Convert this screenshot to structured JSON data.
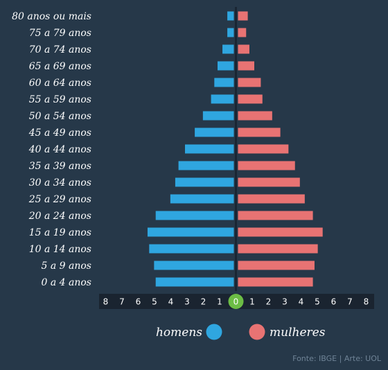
{
  "chart_data": {
    "type": "bar",
    "orientation": "horizontal",
    "categories": [
      "80 anos ou mais",
      "75 a 79 anos",
      "70 a 74 anos",
      "65 a 69 anos",
      "60 a 64 anos",
      "55 a 59 anos",
      "50 a 54 anos",
      "45 a 49 anos",
      "40 a 44 anos",
      "35 a 39 anos",
      "30 a 34 anos",
      "25 a 29 anos",
      "20 a 24 anos",
      "15 a 19 anos",
      "10 a 14 anos",
      "5 a 9 anos",
      "0 a 4 anos"
    ],
    "series": [
      {
        "name": "homens",
        "color": "#2fa6e0",
        "values": [
          0.4,
          0.4,
          0.7,
          1.0,
          1.2,
          1.4,
          1.9,
          2.4,
          3.0,
          3.4,
          3.6,
          3.9,
          4.8,
          5.3,
          5.2,
          4.9,
          4.8
        ]
      },
      {
        "name": "mulheres",
        "color": "#e87373",
        "values": [
          0.6,
          0.5,
          0.7,
          1.0,
          1.4,
          1.5,
          2.1,
          2.6,
          3.1,
          3.5,
          3.8,
          4.1,
          4.6,
          5.2,
          4.9,
          4.7,
          4.6
        ]
      }
    ],
    "xlim": [
      0,
      8
    ],
    "ticks": [
      "8",
      "7",
      "6",
      "5",
      "4",
      "3",
      "2",
      "1",
      "0",
      "1",
      "2",
      "3",
      "4",
      "5",
      "6",
      "7",
      "8"
    ],
    "zero_marker_color": "#6cbd45",
    "legend_position": "bottom-center",
    "source": "Fonte: IBGE | Arte: UOL"
  }
}
